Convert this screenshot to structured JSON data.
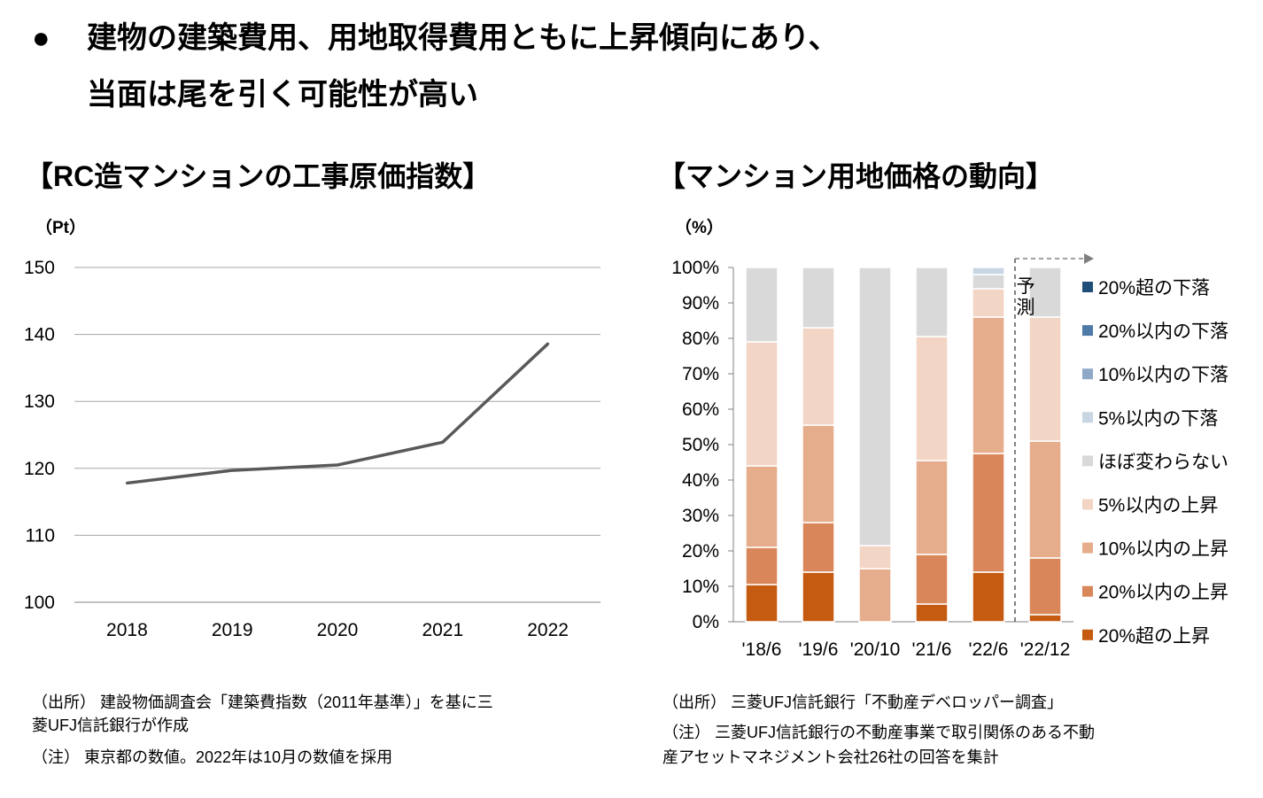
{
  "headline": {
    "bullet": "●",
    "line1": "建物の建築費用、用地取得費用ともに上昇傾向にあり、",
    "line2": "当面は尾を引く可能性が高い"
  },
  "left_panel": {
    "title": "【RC造マンションの工事原価指数】",
    "unit": "（Pt）",
    "source_line1": "（出所）  建設物価調査会「建築費指数（2011年基準）」を基に三",
    "source_line2": "菱UFJ信託銀行が作成",
    "note": "（注）  東京都の数値。2022年は10月の数値を採用"
  },
  "right_panel": {
    "title": "【マンション用地価格の動向】",
    "unit": "（%）",
    "forecast_label_1": "予",
    "forecast_label_2": "測",
    "source": "（出所）  三菱UFJ信託銀行「不動産デベロッパー調査」",
    "note_line1": "（注）    三菱UFJ信託銀行の不動産事業で取引関係のある不動",
    "note_line2": "産アセットマネジメント会社26社の回答を集計"
  },
  "chart_data": [
    {
      "type": "line",
      "title": "【RC造マンションの工事原価指数】",
      "ylabel": "（Pt）",
      "xlabel": "",
      "x": [
        "2018",
        "2019",
        "2020",
        "2021",
        "2022"
      ],
      "series": [
        {
          "name": "工事原価指数",
          "values": [
            117.8,
            119.7,
            120.5,
            123.9,
            138.6
          ],
          "color": "#595959"
        }
      ],
      "ylim": [
        100,
        150
      ],
      "yticks": [
        100,
        110,
        120,
        130,
        140,
        150
      ],
      "grid": true
    },
    {
      "type": "bar",
      "stacked": true,
      "title": "【マンション用地価格の動向】",
      "ylabel": "（%）",
      "categories": [
        "'18/6",
        "'19/6",
        "'20/10",
        "'21/6",
        "'22/6",
        "'22/12"
      ],
      "ylim": [
        0,
        100
      ],
      "yticks": [
        "0%",
        "10%",
        "20%",
        "30%",
        "40%",
        "50%",
        "60%",
        "70%",
        "80%",
        "90%",
        "100%"
      ],
      "legend": "right",
      "series": [
        {
          "name": "20%超の上昇",
          "color": "#C55A11",
          "values": [
            10.5,
            14.0,
            0.0,
            5.0,
            14.0,
            2.0
          ]
        },
        {
          "name": "20%以内の上昇",
          "color": "#D9875A",
          "values": [
            10.5,
            14.0,
            0.0,
            14.0,
            33.5,
            16.0
          ]
        },
        {
          "name": "10%以内の上昇",
          "color": "#E6AD8C",
          "values": [
            23.0,
            27.5,
            15.0,
            26.5,
            38.5,
            33.0
          ]
        },
        {
          "name": "5%以内の上昇",
          "color": "#F2D5C4",
          "values": [
            35.0,
            27.5,
            6.5,
            35.0,
            8.0,
            35.0
          ]
        },
        {
          "name": "ほぼ変わらない",
          "color": "#D9D9D9",
          "values": [
            21.0,
            17.0,
            78.5,
            19.5,
            4.0,
            14.0
          ]
        },
        {
          "name": "5%以内の下落",
          "color": "#C8D5E3",
          "values": [
            0,
            0,
            0,
            0,
            2.0,
            0
          ]
        },
        {
          "name": "10%以内の下落",
          "color": "#8EA9C8",
          "values": [
            0,
            0,
            0,
            0,
            0,
            0
          ]
        },
        {
          "name": "20%以内の下落",
          "color": "#4F79A6",
          "values": [
            0,
            0,
            0,
            0,
            0,
            0
          ]
        },
        {
          "name": "20%超の下落",
          "color": "#1F4E79",
          "values": [
            0,
            0,
            0,
            0,
            0,
            0
          ]
        }
      ],
      "forecast_from_category": "'22/12"
    }
  ]
}
